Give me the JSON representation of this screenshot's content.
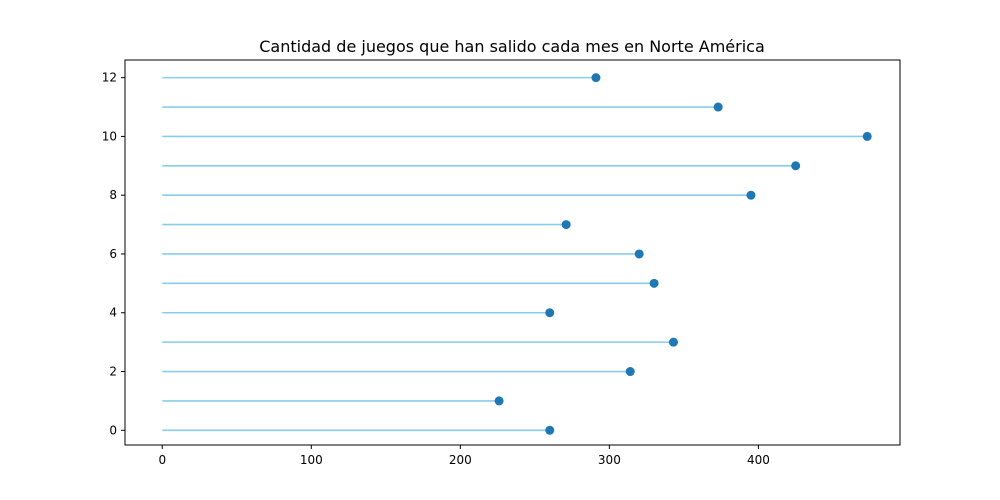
{
  "chart_data": {
    "type": "lollipop",
    "orientation": "horizontal",
    "title": "Cantidad de juegos que han salido cada mes en Norte América",
    "xlabel": "",
    "ylabel": "",
    "xlim": [
      -25,
      495
    ],
    "ylim": [
      -0.5,
      12.6
    ],
    "xticks": [
      0,
      100,
      200,
      300,
      400
    ],
    "yticks": [
      0,
      2,
      4,
      6,
      8,
      10,
      12
    ],
    "grid": false,
    "categories": [
      0,
      1,
      2,
      3,
      4,
      5,
      6,
      7,
      8,
      9,
      10,
      11,
      12
    ],
    "values": [
      260,
      226,
      314,
      343,
      260,
      330,
      320,
      271,
      395,
      425,
      473,
      373,
      291
    ],
    "colors": {
      "stem": "#87ceeb",
      "marker": "#1f77b4"
    }
  }
}
